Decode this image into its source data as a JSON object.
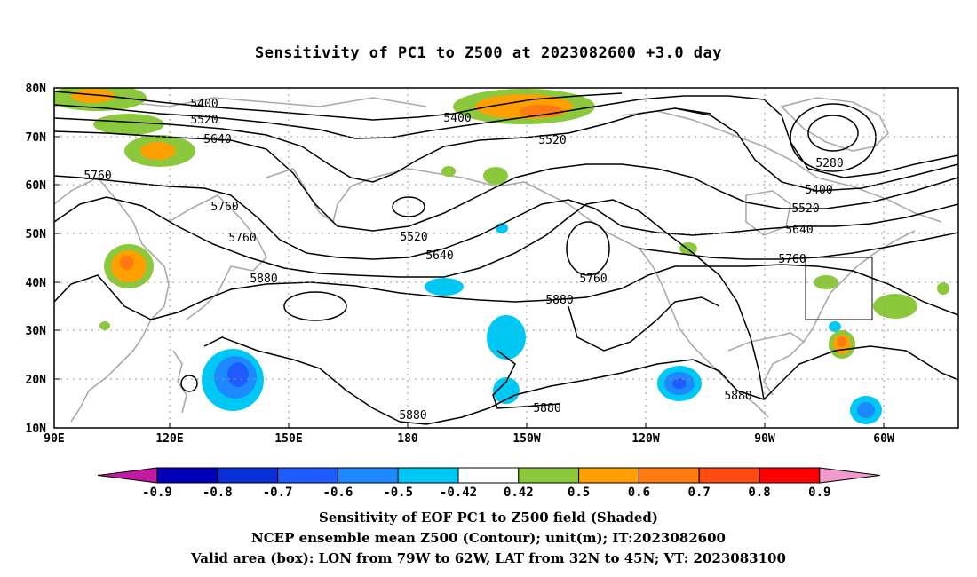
{
  "title": "Sensitivity of PC1 to Z500 at 2023082600 +3.0 day",
  "lat_labels": [
    "80N",
    "70N",
    "60N",
    "50N",
    "40N",
    "30N",
    "20N",
    "10N"
  ],
  "lon_labels": [
    "90E",
    "120E",
    "150E",
    "180",
    "150W",
    "120W",
    "90W",
    "60W"
  ],
  "contour_labels": [
    "5400",
    "5520",
    "5640",
    "5760",
    "5760",
    "5760",
    "5880",
    "5400",
    "5520",
    "5520",
    "5640",
    "5760",
    "5880",
    "5880",
    "5880",
    "5280",
    "5400",
    "5520",
    "5640",
    "5760",
    "5880"
  ],
  "colorbar": {
    "labels": [
      "-0.9",
      "-0.8",
      "-0.7",
      "-0.6",
      "-0.5",
      "-0.42",
      "0.42",
      "0.5",
      "0.6",
      "0.7",
      "0.8",
      "0.9"
    ],
    "colors": [
      "#c21aa0",
      "#0000b8",
      "#0a2fd8",
      "#1e5cff",
      "#1e88ff",
      "#00c8f5",
      "#ffffff",
      "#8cc83c",
      "#ffa000",
      "#ff7a10",
      "#ff4a10",
      "#ff0000",
      "#f29ad0"
    ]
  },
  "footer": {
    "line1": "Sensitivity of EOF PC1 to Z500 field (Shaded)",
    "line2": "NCEP ensemble mean Z500 (Contour); unit(m); IT:2023082600",
    "line3": "Valid area (box): LON from 79W to 62W, LAT from 32N to 45N; VT: 2023083100"
  }
}
